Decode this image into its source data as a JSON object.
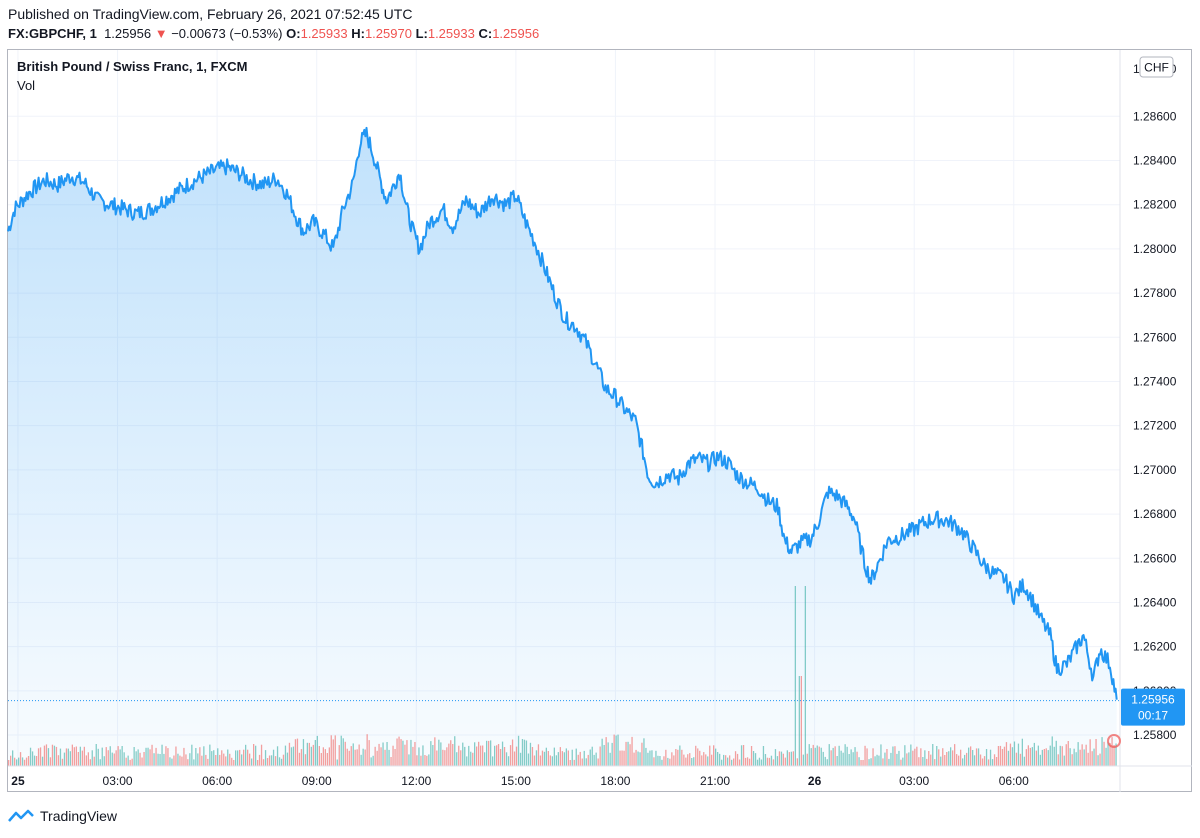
{
  "header": {
    "published": "Published on TradingView.com, February 26, 2021 07:52:45 UTC",
    "symbol": "FX:GBPCHF, 1",
    "last": "1.25956",
    "arrow": "▼",
    "change": "−0.00673 (−0.53%)",
    "o_label": "O:",
    "o": "1.25933",
    "h_label": "H:",
    "h": "1.25970",
    "l_label": "L:",
    "l": "1.25933",
    "c_label": "C:",
    "c": "1.25956"
  },
  "legend": {
    "title": "British Pound / Swiss Franc, 1, FXCM",
    "vol": "Vol"
  },
  "currency_badge": "CHF",
  "price_tag": {
    "price": "1.25956",
    "countdown": "00:17"
  },
  "footer": {
    "brand": "TradingView"
  },
  "colors": {
    "line": "#2196f3",
    "up": "#26a69a",
    "down": "#ef5350",
    "tag": "#2196f3"
  },
  "chart_data": {
    "type": "area",
    "title": "British Pound / Swiss Franc, 1, FXCM",
    "ylim": [
      1.2566,
      1.289
    ],
    "yticks": [
      "1.28600",
      "1.28400",
      "1.28200",
      "1.28000",
      "1.27800",
      "1.27600",
      "1.27400",
      "1.27200",
      "1.27000",
      "1.26800",
      "1.26600",
      "1.26400",
      "1.26200",
      "1.26000",
      "1.25800"
    ],
    "ytick_values": [
      1.286,
      1.284,
      1.282,
      1.28,
      1.278,
      1.276,
      1.274,
      1.272,
      1.27,
      1.268,
      1.266,
      1.264,
      1.262,
      1.26,
      1.258
    ],
    "xlim": [
      -0.3,
      31.9
    ],
    "xticks": [
      {
        "label": "25",
        "t": 0,
        "bold": true
      },
      {
        "label": "03:00",
        "t": 3
      },
      {
        "label": "06:00",
        "t": 6
      },
      {
        "label": "09:00",
        "t": 9
      },
      {
        "label": "12:00",
        "t": 12
      },
      {
        "label": "15:00",
        "t": 15
      },
      {
        "label": "18:00",
        "t": 18
      },
      {
        "label": "21:00",
        "t": 21
      },
      {
        "label": "26",
        "t": 24,
        "bold": true
      },
      {
        "label": "03:00",
        "t": 27
      },
      {
        "label": "06:00",
        "t": 30
      }
    ],
    "x_unit": "hours since Feb 25 00:00 UTC",
    "series": [
      {
        "name": "GBPCHF close",
        "points": [
          [
            -0.3,
            1.2808
          ],
          [
            -0.1,
            1.2818
          ],
          [
            0.3,
            1.2825
          ],
          [
            0.8,
            1.2831
          ],
          [
            1.2,
            1.2829
          ],
          [
            1.6,
            1.2833
          ],
          [
            2.0,
            1.283
          ],
          [
            2.4,
            1.2822
          ],
          [
            2.8,
            1.282
          ],
          [
            3.2,
            1.2818
          ],
          [
            3.6,
            1.2816
          ],
          [
            4.0,
            1.2818
          ],
          [
            4.4,
            1.2822
          ],
          [
            4.8,
            1.2826
          ],
          [
            5.2,
            1.283
          ],
          [
            5.6,
            1.2833
          ],
          [
            6.0,
            1.2836
          ],
          [
            6.3,
            1.2837
          ],
          [
            6.7,
            1.2834
          ],
          [
            7.0,
            1.2831
          ],
          [
            7.4,
            1.2829
          ],
          [
            7.8,
            1.2832
          ],
          [
            8.1,
            1.2825
          ],
          [
            8.4,
            1.2814
          ],
          [
            8.6,
            1.2808
          ],
          [
            8.9,
            1.2812
          ],
          [
            9.2,
            1.2807
          ],
          [
            9.5,
            1.28
          ],
          [
            9.8,
            1.2818
          ],
          [
            10.1,
            1.283
          ],
          [
            10.3,
            1.2848
          ],
          [
            10.5,
            1.2852
          ],
          [
            10.7,
            1.2843
          ],
          [
            10.9,
            1.2832
          ],
          [
            11.1,
            1.2822
          ],
          [
            11.3,
            1.2828
          ],
          [
            11.5,
            1.2835
          ],
          [
            11.7,
            1.2819
          ],
          [
            11.9,
            1.2808
          ],
          [
            12.1,
            1.28
          ],
          [
            12.4,
            1.2812
          ],
          [
            12.8,
            1.2818
          ],
          [
            13.1,
            1.281
          ],
          [
            13.5,
            1.2822
          ],
          [
            13.9,
            1.2816
          ],
          [
            14.3,
            1.2824
          ],
          [
            14.7,
            1.282
          ],
          [
            15.0,
            1.2824
          ],
          [
            15.3,
            1.2812
          ],
          [
            15.6,
            1.2802
          ],
          [
            15.9,
            1.279
          ],
          [
            16.2,
            1.2778
          ],
          [
            16.5,
            1.2768
          ],
          [
            16.8,
            1.2765
          ],
          [
            17.1,
            1.2758
          ],
          [
            17.4,
            1.2748
          ],
          [
            17.7,
            1.2737
          ],
          [
            18.0,
            1.2733
          ],
          [
            18.3,
            1.2727
          ],
          [
            18.6,
            1.2722
          ],
          [
            18.8,
            1.271
          ],
          [
            19.0,
            1.2697
          ],
          [
            19.2,
            1.2694
          ],
          [
            19.6,
            1.2698
          ],
          [
            19.9,
            1.2696
          ],
          [
            20.2,
            1.2703
          ],
          [
            20.5,
            1.2705
          ],
          [
            20.8,
            1.2703
          ],
          [
            21.1,
            1.2706
          ],
          [
            21.4,
            1.2703
          ],
          [
            21.7,
            1.2697
          ],
          [
            22.0,
            1.2694
          ],
          [
            22.3,
            1.2692
          ],
          [
            22.6,
            1.2686
          ],
          [
            22.9,
            1.2683
          ],
          [
            23.1,
            1.2668
          ],
          [
            23.3,
            1.2663
          ],
          [
            23.6,
            1.2667
          ],
          [
            23.9,
            1.2669
          ],
          [
            24.1,
            1.2676
          ],
          [
            24.4,
            1.269
          ],
          [
            24.7,
            1.2688
          ],
          [
            25.0,
            1.2683
          ],
          [
            25.2,
            1.2678
          ],
          [
            25.5,
            1.2658
          ],
          [
            25.7,
            1.265
          ],
          [
            25.9,
            1.2657
          ],
          [
            26.2,
            1.2668
          ],
          [
            26.6,
            1.267
          ],
          [
            27.0,
            1.2673
          ],
          [
            27.3,
            1.2676
          ],
          [
            27.6,
            1.2678
          ],
          [
            28.0,
            1.2677
          ],
          [
            28.4,
            1.2673
          ],
          [
            28.8,
            1.2664
          ],
          [
            29.1,
            1.2657
          ],
          [
            29.4,
            1.2653
          ],
          [
            29.7,
            1.2651
          ],
          [
            30.0,
            1.2643
          ],
          [
            30.3,
            1.2648
          ],
          [
            30.5,
            1.2643
          ],
          [
            30.8,
            1.2633
          ],
          [
            31.1,
            1.2625
          ],
          [
            31.3,
            1.261
          ],
          [
            31.6,
            1.2612
          ],
          [
            31.9,
            1.262
          ],
          [
            32.1,
            1.2625
          ],
          [
            32.4,
            1.2606
          ],
          [
            32.6,
            1.2619
          ],
          [
            32.9,
            1.2612
          ],
          [
            33.1,
            1.2596
          ]
        ]
      }
    ],
    "volume": {
      "description": "1-minute volume bars (green up / red down), with a spike near 23:30",
      "spike_t": [
        23.4,
        23.55,
        23.7
      ]
    }
  }
}
